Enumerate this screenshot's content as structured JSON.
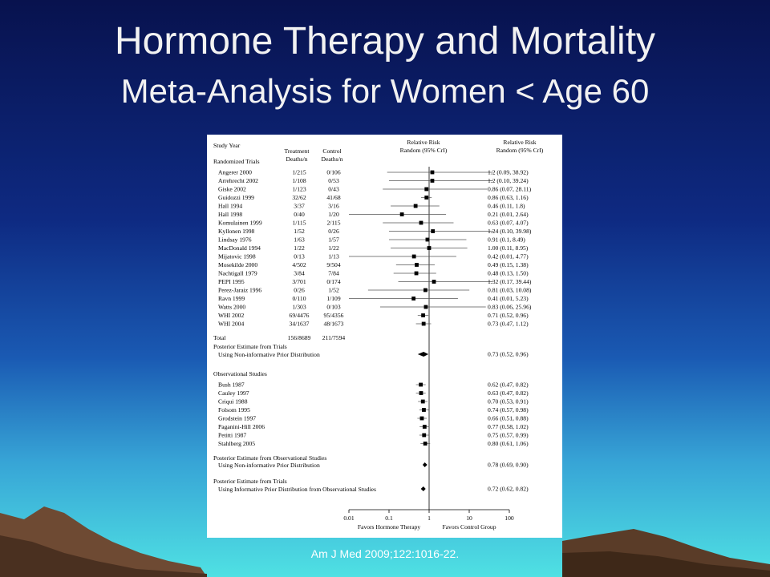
{
  "slide": {
    "title": "Hormone Therapy and Mortality",
    "subtitle": "Meta-Analysis for Women < Age 60",
    "citation": "Am J Med 2009;122:1016-22."
  },
  "colors": {
    "title_text": "#f2f2f2",
    "background_top": "#08124e",
    "background_bottom": "#4fe1e3"
  },
  "chart_data": {
    "type": "forest",
    "headers": {
      "study_year": "Study Year",
      "treatment": [
        "Treatment",
        "Deaths/n"
      ],
      "control": [
        "Control",
        "Deaths/n"
      ],
      "plot": [
        "Relative Risk",
        "Random (95% CrI)"
      ],
      "rr": [
        "Relative Risk",
        "Random (95% CrI)"
      ]
    },
    "x_axis": {
      "scale": "log",
      "range": [
        0.01,
        100
      ],
      "ticks": [
        0.01,
        0.1,
        1,
        10,
        100
      ],
      "tick_labels": [
        "0.01",
        "0.1",
        "1",
        "10",
        "100"
      ],
      "left_label": "Favors Hormone Therapy",
      "right_label": "Favors Control Group"
    },
    "randomized_heading": "Randomized Trials",
    "randomized": [
      {
        "study": "Angerer 2000",
        "treatment": "1/215",
        "control": "0/106",
        "rr": 1.2,
        "lo": 0.09,
        "hi": 38.92,
        "label": "1.2 (0.09, 38.92)"
      },
      {
        "study": "Arrehrecht 2002",
        "treatment": "1/108",
        "control": "0/53",
        "rr": 1.2,
        "lo": 0.1,
        "hi": 39.24,
        "label": "1.2 (0.10, 39.24)"
      },
      {
        "study": "Giske 2002",
        "treatment": "1/123",
        "control": "0/43",
        "rr": 0.86,
        "lo": 0.07,
        "hi": 28.11,
        "label": "0.86 (0.07, 28.11)"
      },
      {
        "study": "Guidozzi 1999",
        "treatment": "32/62",
        "control": "41/68",
        "rr": 0.86,
        "lo": 0.63,
        "hi": 1.16,
        "label": "0.86 (0.63, 1.16)"
      },
      {
        "study": "Hall 1994",
        "treatment": "3/37",
        "control": "3/16",
        "rr": 0.46,
        "lo": 0.11,
        "hi": 1.8,
        "label": "0.46 (0.11, 1.8)"
      },
      {
        "study": "Hall 1998",
        "treatment": "0/40",
        "control": "1/20",
        "rr": 0.21,
        "lo": 0.01,
        "hi": 2.64,
        "label": "0.21 (0.01, 2.64)"
      },
      {
        "study": "Komulainen 1999",
        "treatment": "1/115",
        "control": "2/115",
        "rr": 0.63,
        "lo": 0.07,
        "hi": 4.07,
        "label": "0.63 (0.07, 4.07)"
      },
      {
        "study": "Kyllonen 1998",
        "treatment": "1/52",
        "control": "0/26",
        "rr": 1.24,
        "lo": 0.1,
        "hi": 39.98,
        "label": "1.24 (0.10, 39.98)"
      },
      {
        "study": "Lindsay 1976",
        "treatment": "1/63",
        "control": "1/57",
        "rr": 0.91,
        "lo": 0.1,
        "hi": 8.49,
        "label": "0.91 (0.1, 8.49)"
      },
      {
        "study": "MacDonald 1994",
        "treatment": "1/22",
        "control": "1/22",
        "rr": 1.0,
        "lo": 0.11,
        "hi": 8.95,
        "label": "1.00 (0.11, 8.95)"
      },
      {
        "study": "Mijatovic 1998",
        "treatment": "0/13",
        "control": "1/13",
        "rr": 0.42,
        "lo": 0.01,
        "hi": 4.77,
        "label": "0.42 (0.01, 4.77)"
      },
      {
        "study": "Mosekilde 2000",
        "treatment": "4/502",
        "control": "9/504",
        "rr": 0.49,
        "lo": 0.15,
        "hi": 1.38,
        "label": "0.49 (0.15, 1.38)"
      },
      {
        "study": "Nachtigall 1979",
        "treatment": "3/84",
        "control": "7/84",
        "rr": 0.48,
        "lo": 0.13,
        "hi": 1.5,
        "label": "0.48 (0.13, 1.50)"
      },
      {
        "study": "PEPI 1995",
        "treatment": "3/701",
        "control": "0/174",
        "rr": 1.32,
        "lo": 0.17,
        "hi": 39.44,
        "label": "1.32 (0.17, 39.44)"
      },
      {
        "study": "Perez-Jaraiz 1996",
        "treatment": "0/26",
        "control": "1/52",
        "rr": 0.81,
        "lo": 0.03,
        "hi": 10.08,
        "label": "0.81 (0.03, 10.08)"
      },
      {
        "study": "Ravn 1999",
        "treatment": "0/110",
        "control": "1/109",
        "rr": 0.41,
        "lo": 0.01,
        "hi": 5.23,
        "label": "0.41 (0.01, 5.23)"
      },
      {
        "study": "Watts 2000",
        "treatment": "1/303",
        "control": "0/103",
        "rr": 0.83,
        "lo": 0.06,
        "hi": 25.96,
        "label": "0.83 (0.06, 25.96)"
      },
      {
        "study": "WHI 2002",
        "treatment": "69/4476",
        "control": "95/4356",
        "rr": 0.71,
        "lo": 0.52,
        "hi": 0.96,
        "label": "0.71 (0.52, 0.96)"
      },
      {
        "study": "WHI 2004",
        "treatment": "34/1637",
        "control": "48/1673",
        "rr": 0.73,
        "lo": 0.47,
        "hi": 1.12,
        "label": "0.73 (0.47, 1.12)"
      }
    ],
    "total": {
      "study": "Total",
      "treatment": "156/8689",
      "control": "211/7594"
    },
    "posterior_trials": {
      "line1": "Posterior Estimate from Trials",
      "line2": "Using Non-informative Prior Distribution",
      "rr": 0.73,
      "lo": 0.52,
      "hi": 0.96,
      "label": "0.73 (0.52, 0.96)"
    },
    "observational_heading": "Observational Studies",
    "observational": [
      {
        "study": "Bush 1987",
        "rr": 0.62,
        "lo": 0.47,
        "hi": 0.82,
        "label": "0.62 (0.47, 0.82)"
      },
      {
        "study": "Cauley 1997",
        "rr": 0.63,
        "lo": 0.47,
        "hi": 0.82,
        "label": "0.63 (0.47, 0.82)"
      },
      {
        "study": "Criqui 1988",
        "rr": 0.7,
        "lo": 0.53,
        "hi": 0.91,
        "label": "0.70 (0.53, 0.91)"
      },
      {
        "study": "Folsom 1995",
        "rr": 0.74,
        "lo": 0.57,
        "hi": 0.98,
        "label": "0.74 (0.57, 0.98)"
      },
      {
        "study": "Grodstein 1997",
        "rr": 0.66,
        "lo": 0.51,
        "hi": 0.88,
        "label": "0.66 (0.51, 0.88)"
      },
      {
        "study": "Paganini-Hill 2006",
        "rr": 0.77,
        "lo": 0.58,
        "hi": 1.02,
        "label": "0.77 (0.58, 1.02)"
      },
      {
        "study": "Petitti 1987",
        "rr": 0.75,
        "lo": 0.57,
        "hi": 0.99,
        "label": "0.75 (0.57, 0.99)"
      },
      {
        "study": "Stahlberg 2005",
        "rr": 0.8,
        "lo": 0.61,
        "hi": 1.06,
        "label": "0.80 (0.61, 1.06)"
      }
    ],
    "posterior_observational": {
      "line1": "Posterior Estimate from Observational Studies",
      "line2": "Using Non-informative Prior Distribution",
      "rr": 0.78,
      "lo": 0.69,
      "hi": 0.9,
      "label": "0.78 (0.69, 0.90)"
    },
    "posterior_informative": {
      "line1": "Posterior Estimate from Trials",
      "line2": "Using Informative Prior Distribution from Observational Studies",
      "rr": 0.72,
      "lo": 0.62,
      "hi": 0.82,
      "label": "0.72 (0.62, 0.82)"
    }
  }
}
